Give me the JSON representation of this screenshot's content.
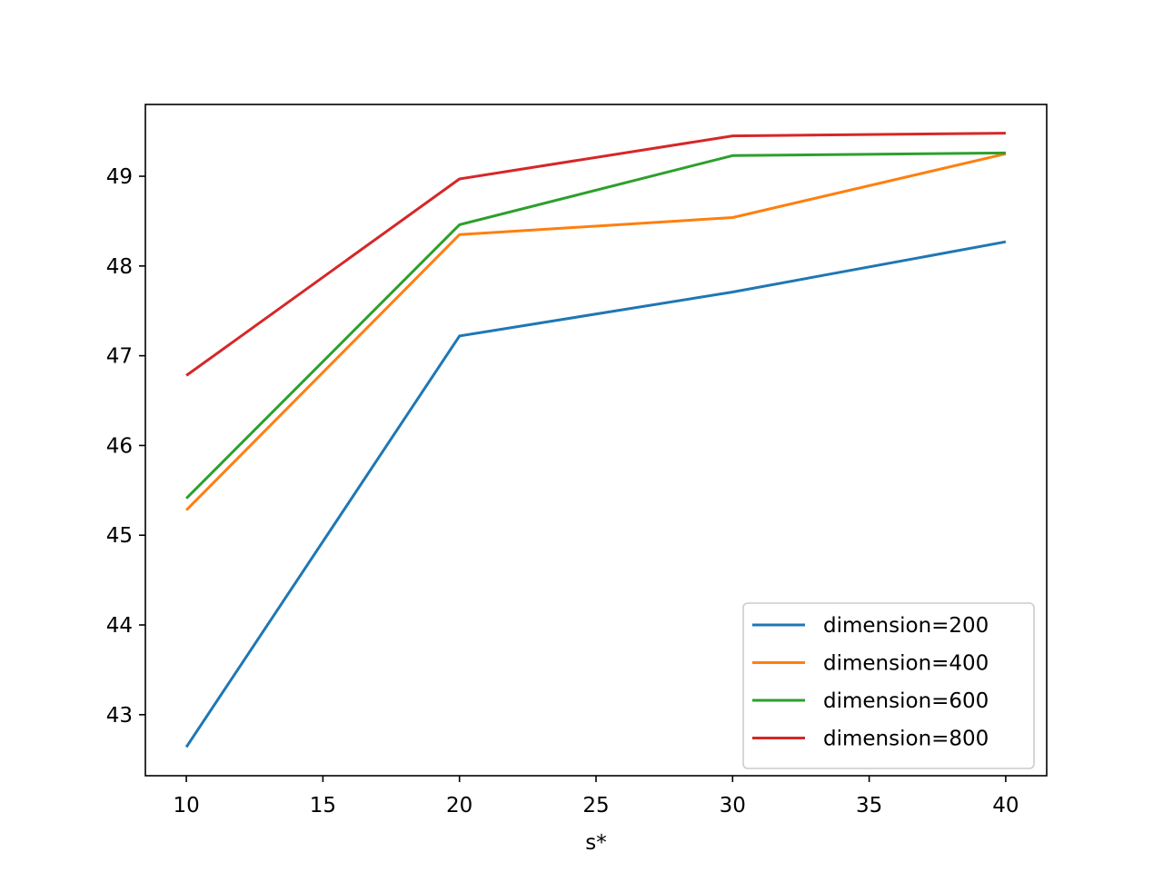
{
  "chart_data": {
    "type": "line",
    "title": "",
    "xlabel": "s*",
    "ylabel": "",
    "x": [
      10,
      20,
      30,
      40
    ],
    "series": [
      {
        "name": "dimension=200",
        "color": "#1f77b4",
        "values": [
          42.64,
          47.22,
          47.71,
          48.27
        ]
      },
      {
        "name": "dimension=400",
        "color": "#ff7f0e",
        "values": [
          45.28,
          48.35,
          48.54,
          49.25
        ]
      },
      {
        "name": "dimension=600",
        "color": "#2ca02c",
        "values": [
          45.41,
          48.46,
          49.23,
          49.26
        ]
      },
      {
        "name": "dimension=800",
        "color": "#d62728",
        "values": [
          46.78,
          48.97,
          49.45,
          49.48
        ]
      }
    ],
    "xticks": [
      10,
      15,
      20,
      25,
      30,
      35,
      40
    ],
    "yticks": [
      43,
      44,
      45,
      46,
      47,
      48,
      49
    ],
    "xlim": [
      8.5,
      41.5
    ],
    "ylim": [
      42.32,
      49.8
    ],
    "grid": false,
    "legend_position": "lower-right"
  }
}
